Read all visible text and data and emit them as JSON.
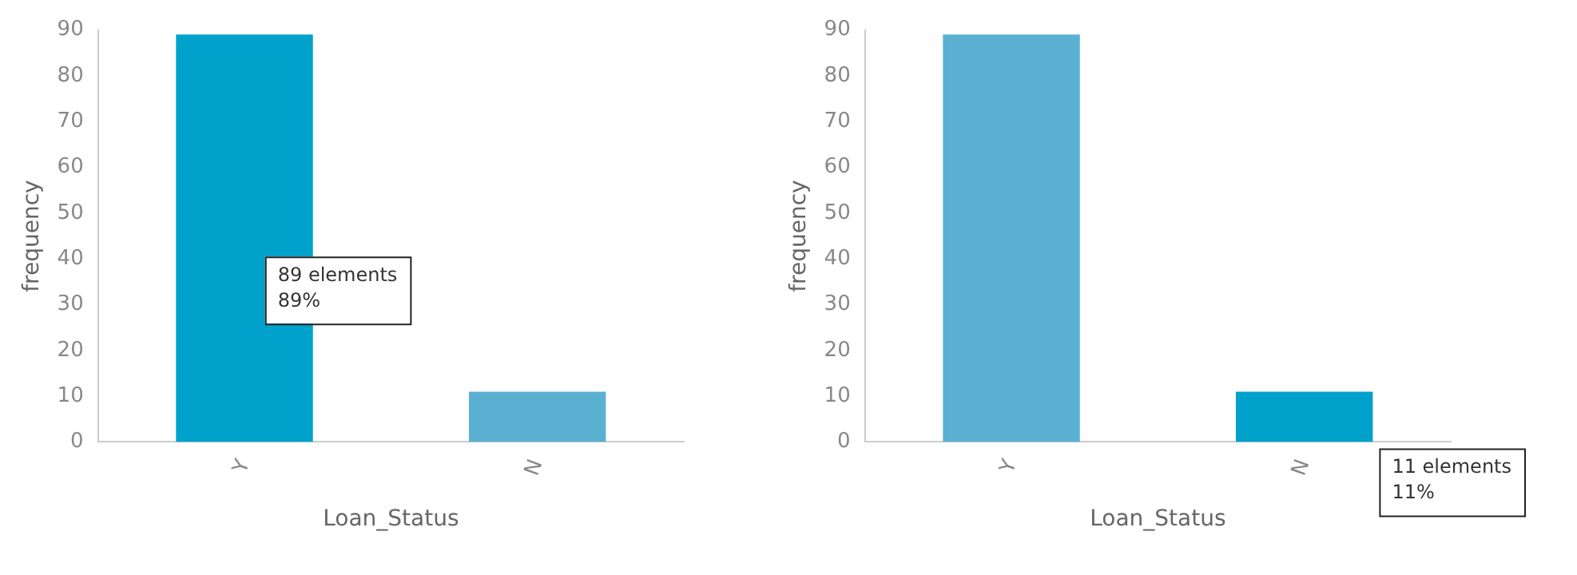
{
  "chart_data": [
    {
      "type": "bar",
      "xlabel": "Loan_Status",
      "ylabel": "frequency",
      "categories": [
        "Y",
        "N"
      ],
      "values": [
        89,
        11
      ],
      "colors": [
        "#00a2cc",
        "#5ab0d0"
      ],
      "ylim": [
        0,
        90
      ],
      "yticks": [
        0,
        10,
        20,
        30,
        40,
        50,
        60,
        70,
        80,
        90
      ],
      "legend": false,
      "annotations": [
        "89 elements\n89%"
      ]
    },
    {
      "type": "bar",
      "xlabel": "Loan_Status",
      "ylabel": "frequency",
      "categories": [
        "Y",
        "N"
      ],
      "values": [
        89,
        11
      ],
      "colors": [
        "#5ab0d0",
        "#00a2cc"
      ],
      "ylim": [
        0,
        90
      ],
      "yticks": [
        0,
        10,
        20,
        30,
        40,
        50,
        60,
        70,
        80,
        90
      ],
      "legend": false,
      "annotations": [
        "11 elements\n11%"
      ]
    }
  ]
}
